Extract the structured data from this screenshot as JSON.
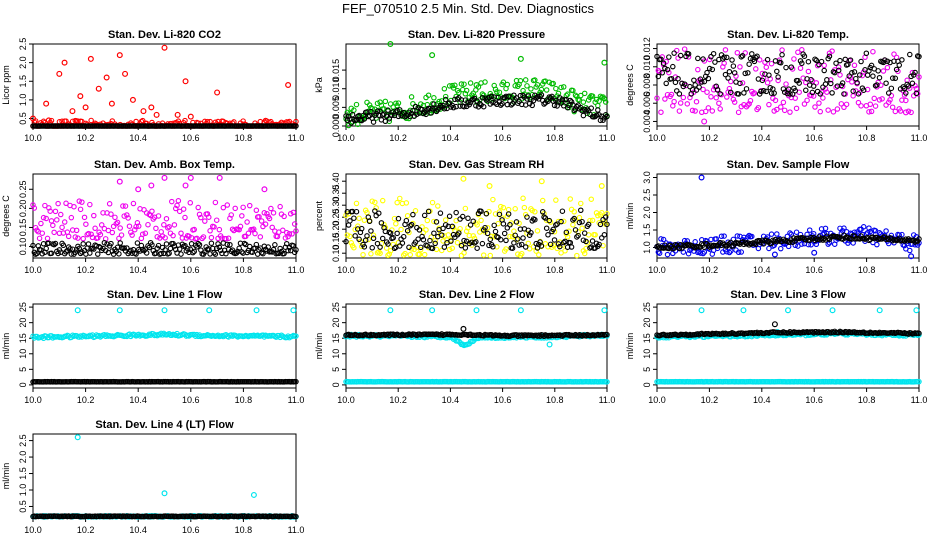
{
  "page": {
    "title": "FEF_070510  2.5 Min. Std. Dev. Diagnostics"
  },
  "chart_data": [
    {
      "type": "scatter",
      "title": "Stan. Dev. Li-820 CO2",
      "ylabel": "Licor ppm",
      "xlim": [
        10.0,
        11.0
      ],
      "ylim": [
        0.3,
        2.5
      ],
      "xticks": [
        10.0,
        10.2,
        10.4,
        10.6,
        10.8,
        11.0
      ],
      "yticks": [
        0.5,
        1.0,
        1.5,
        2.0,
        2.5
      ],
      "series": [
        {
          "color": "#ff0000",
          "base": [
            0.25,
            0.45
          ],
          "scatter": [
            [
              10.0,
              0.5
            ],
            [
              10.05,
              0.9
            ],
            [
              10.1,
              1.7
            ],
            [
              10.12,
              2.0
            ],
            [
              10.15,
              0.7
            ],
            [
              10.18,
              1.1
            ],
            [
              10.2,
              0.8
            ],
            [
              10.22,
              2.1
            ],
            [
              10.25,
              1.3
            ],
            [
              10.3,
              0.9
            ],
            [
              10.33,
              2.2
            ],
            [
              10.38,
              1.0
            ],
            [
              10.42,
              0.7
            ],
            [
              10.45,
              0.8
            ],
            [
              10.5,
              2.4
            ],
            [
              10.55,
              0.6
            ],
            [
              10.6,
              0.55
            ],
            [
              10.58,
              1.5
            ],
            [
              10.7,
              1.2
            ],
            [
              10.88,
              0.4
            ],
            [
              10.97,
              1.4
            ],
            [
              10.35,
              1.7
            ],
            [
              10.28,
              1.6
            ],
            [
              10.47,
              0.6
            ],
            [
              10.06,
              0.45
            ]
          ]
        },
        {
          "color": "#000000",
          "base": [
            0.2,
            0.3
          ],
          "scatter": []
        }
      ]
    },
    {
      "type": "scatter",
      "title": "Stan. Dev. Li-820 Pressure",
      "ylabel": "kPa",
      "xlim": [
        10.0,
        11.0
      ],
      "ylim": [
        0.0,
        0.022
      ],
      "xticks": [
        10.0,
        10.2,
        10.4,
        10.6,
        10.8,
        11.0
      ],
      "yticks": [
        0.0,
        0.005,
        0.01,
        0.015
      ],
      "series": [
        {
          "color": "#00bb00",
          "curve": [
            [
              10.0,
              0.003
            ],
            [
              10.2,
              0.004
            ],
            [
              10.4,
              0.008
            ],
            [
              10.5,
              0.009
            ],
            [
              10.6,
              0.009
            ],
            [
              10.7,
              0.01
            ],
            [
              10.8,
              0.009
            ],
            [
              10.9,
              0.006
            ],
            [
              11.0,
              0.005
            ]
          ],
          "spread": 0.003,
          "scatter": [
            [
              10.17,
              0.022
            ],
            [
              10.33,
              0.019
            ],
            [
              10.67,
              0.018
            ],
            [
              10.99,
              0.017
            ],
            [
              10.5,
              0.011
            ]
          ]
        },
        {
          "color": "#000000",
          "curve": [
            [
              10.0,
              0.002
            ],
            [
              10.2,
              0.003
            ],
            [
              10.4,
              0.006
            ],
            [
              10.6,
              0.007
            ],
            [
              10.8,
              0.007
            ],
            [
              11.0,
              0.002
            ]
          ],
          "spread": 0.0015,
          "scatter": []
        }
      ]
    },
    {
      "type": "scatter",
      "title": "Stan. Dev. Li-820 Temp.",
      "ylabel": "degrees C",
      "xlim": [
        10.0,
        11.0
      ],
      "ylim": [
        0.0035,
        0.0125
      ],
      "xticks": [
        10.0,
        10.2,
        10.4,
        10.6,
        10.8,
        11.0
      ],
      "yticks": [
        0.004,
        0.006,
        0.008,
        0.01,
        0.012
      ],
      "series": [
        {
          "color": "#ee00ee",
          "base": [
            0.005,
            0.012
          ],
          "scatter": [
            [
              10.18,
              0.004
            ],
            [
              10.95,
              0.005
            ]
          ]
        },
        {
          "color": "#000000",
          "base": [
            0.007,
            0.0115
          ],
          "scatter": []
        }
      ]
    },
    {
      "type": "scatter",
      "title": "Stan. Dev. Amb. Box Temp.",
      "ylabel": "degrees C",
      "xlim": [
        10.0,
        11.0
      ],
      "ylim": [
        0.07,
        0.29
      ],
      "xticks": [
        10.0,
        10.2,
        10.4,
        10.6,
        10.8,
        11.0
      ],
      "yticks": [
        0.1,
        0.15,
        0.2,
        0.25
      ],
      "series": [
        {
          "color": "#ee00ee",
          "base": [
            0.12,
            0.22
          ],
          "scatter": [
            [
              10.33,
              0.27
            ],
            [
              10.5,
              0.28
            ],
            [
              10.58,
              0.26
            ],
            [
              10.6,
              0.28
            ],
            [
              10.71,
              0.28
            ],
            [
              10.45,
              0.26
            ],
            [
              10.4,
              0.25
            ],
            [
              10.88,
              0.25
            ]
          ]
        },
        {
          "color": "#000000",
          "base": [
            0.08,
            0.11
          ],
          "scatter": []
        }
      ]
    },
    {
      "type": "scatter",
      "title": "Stan. Dev. Gas Stream RH",
      "ylabel": "percent",
      "xlim": [
        10.0,
        11.0
      ],
      "ylim": [
        0.08,
        0.43
      ],
      "xticks": [
        10.0,
        10.2,
        10.4,
        10.6,
        10.8,
        11.0
      ],
      "yticks": [
        0.1,
        0.15,
        0.2,
        0.25,
        0.3,
        0.35,
        0.4
      ],
      "series": [
        {
          "color": "#ffff00",
          "base": [
            0.09,
            0.33
          ],
          "scatter": [
            [
              10.45,
              0.41
            ],
            [
              10.55,
              0.38
            ],
            [
              10.75,
              0.4
            ],
            [
              10.98,
              0.38
            ]
          ]
        },
        {
          "color": "#000000",
          "base": [
            0.12,
            0.28
          ],
          "scatter": []
        }
      ]
    },
    {
      "type": "scatter",
      "title": "Stan. Dev. Sample Flow",
      "ylabel": "ml/min",
      "xlim": [
        10.0,
        11.0
      ],
      "ylim": [
        0.7,
        3.1
      ],
      "xticks": [
        10.0,
        10.2,
        10.4,
        10.6,
        10.8,
        11.0
      ],
      "yticks": [
        1.0,
        1.5,
        2.0,
        2.5,
        3.0
      ],
      "series": [
        {
          "color": "#0000ee",
          "curve": [
            [
              10.0,
              1.0
            ],
            [
              10.2,
              1.05
            ],
            [
              10.4,
              1.15
            ],
            [
              10.6,
              1.3
            ],
            [
              10.8,
              1.35
            ],
            [
              11.0,
              1.1
            ]
          ],
          "spread": 0.25,
          "scatter": [
            [
              10.17,
              3.0
            ],
            [
              10.45,
              0.8
            ],
            [
              10.6,
              0.85
            ],
            [
              10.97,
              0.75
            ]
          ]
        },
        {
          "color": "#000000",
          "curve": [
            [
              10.0,
              1.0
            ],
            [
              10.3,
              1.1
            ],
            [
              10.5,
              1.2
            ],
            [
              10.7,
              1.3
            ],
            [
              11.0,
              1.2
            ]
          ],
          "spread": 0.06,
          "scatter": []
        }
      ]
    },
    {
      "type": "scatter",
      "title": "Stan. Dev. Line 1 Flow",
      "ylabel": "ml/min",
      "xlim": [
        10.0,
        11.0
      ],
      "ylim": [
        -1,
        26
      ],
      "xticks": [
        10.0,
        10.2,
        10.4,
        10.6,
        10.8,
        11.0
      ],
      "yticks": [
        0,
        5,
        10,
        15,
        20,
        25
      ],
      "series": [
        {
          "color": "#00e5ee",
          "curve": [
            [
              10.0,
              15.3
            ],
            [
              10.3,
              15.8
            ],
            [
              10.5,
              16.2
            ],
            [
              10.7,
              15.8
            ],
            [
              11.0,
              15.5
            ]
          ],
          "spread": 0.4,
          "scatter": [
            [
              10.17,
              24
            ],
            [
              10.33,
              24
            ],
            [
              10.5,
              24
            ],
            [
              10.67,
              24
            ],
            [
              10.85,
              24
            ],
            [
              10.99,
              24
            ]
          ]
        },
        {
          "color": "#000000",
          "curve": [
            [
              10.0,
              1.0
            ],
            [
              11.0,
              1.0
            ]
          ],
          "spread": 0.05,
          "scatter": []
        }
      ]
    },
    {
      "type": "scatter",
      "title": "Stan. Dev. Line 2 Flow",
      "ylabel": "ml/min",
      "xlim": [
        10.0,
        11.0
      ],
      "ylim": [
        -1,
        26
      ],
      "xticks": [
        10.0,
        10.2,
        10.4,
        10.6,
        10.8,
        11.0
      ],
      "yticks": [
        0,
        5,
        10,
        15,
        20,
        25
      ],
      "series": [
        {
          "color": "#00e5ee",
          "curve": [
            [
              10.0,
              15.8
            ],
            [
              10.4,
              15.5
            ],
            [
              10.46,
              12.5
            ],
            [
              10.5,
              15.3
            ],
            [
              10.8,
              15.5
            ],
            [
              11.0,
              16
            ]
          ],
          "spread": 0.4,
          "scatter": [
            [
              10.17,
              24
            ],
            [
              10.33,
              24
            ],
            [
              10.5,
              24
            ],
            [
              10.67,
              24
            ],
            [
              10.78,
              13
            ],
            [
              10.99,
              24
            ]
          ]
        },
        {
          "color": "#00e5ee",
          "curve": [
            [
              10.0,
              1.0
            ],
            [
              11.0,
              1.0
            ]
          ],
          "spread": 0.05,
          "scatter": []
        },
        {
          "color": "#000000",
          "curve": [
            [
              10.0,
              16
            ],
            [
              10.45,
              16.2
            ],
            [
              10.6,
              15.8
            ],
            [
              11.0,
              16
            ]
          ],
          "spread": 0.25,
          "scatter": [
            [
              10.45,
              18
            ]
          ]
        }
      ]
    },
    {
      "type": "scatter",
      "title": "Stan. Dev. Line 3 Flow",
      "ylabel": "ml/min",
      "xlim": [
        10.0,
        11.0
      ],
      "ylim": [
        -1,
        26
      ],
      "xticks": [
        10.0,
        10.2,
        10.4,
        10.6,
        10.8,
        11.0
      ],
      "yticks": [
        0,
        5,
        10,
        15,
        20,
        25
      ],
      "series": [
        {
          "color": "#00e5ee",
          "curve": [
            [
              10.0,
              15.5
            ],
            [
              10.45,
              16
            ],
            [
              10.7,
              16.5
            ],
            [
              11.0,
              16
            ]
          ],
          "spread": 0.4,
          "scatter": [
            [
              10.17,
              24
            ],
            [
              10.33,
              24
            ],
            [
              10.5,
              24
            ],
            [
              10.67,
              24
            ],
            [
              10.85,
              24
            ],
            [
              10.99,
              24
            ],
            [
              10.46,
              17
            ]
          ]
        },
        {
          "color": "#00e5ee",
          "curve": [
            [
              10.0,
              1.0
            ],
            [
              11.0,
              1.0
            ]
          ],
          "spread": 0.05,
          "scatter": []
        },
        {
          "color": "#000000",
          "curve": [
            [
              10.0,
              16
            ],
            [
              10.45,
              16.8
            ],
            [
              10.7,
              17
            ],
            [
              11.0,
              16.5
            ]
          ],
          "spread": 0.25,
          "scatter": [
            [
              10.45,
              19.5
            ]
          ]
        }
      ]
    },
    {
      "type": "scatter",
      "title": "Stan. Dev. Line 4 (LT) Flow",
      "ylabel": "ml/min",
      "xlim": [
        10.0,
        11.0
      ],
      "ylim": [
        0.15,
        2.7
      ],
      "xticks": [
        10.0,
        10.2,
        10.4,
        10.6,
        10.8,
        11.0
      ],
      "yticks": [
        0.5,
        1.0,
        1.5,
        2.0,
        2.5
      ],
      "series": [
        {
          "color": "#00e5ee",
          "curve": [
            [
              10.0,
              0.2
            ],
            [
              11.0,
              0.2
            ]
          ],
          "spread": 0.02,
          "scatter": [
            [
              10.17,
              2.6
            ],
            [
              10.5,
              0.9
            ],
            [
              10.84,
              0.85
            ]
          ]
        },
        {
          "color": "#000000",
          "curve": [
            [
              10.0,
              0.2
            ],
            [
              11.0,
              0.2
            ]
          ],
          "spread": 0.01,
          "scatter": []
        }
      ]
    }
  ]
}
